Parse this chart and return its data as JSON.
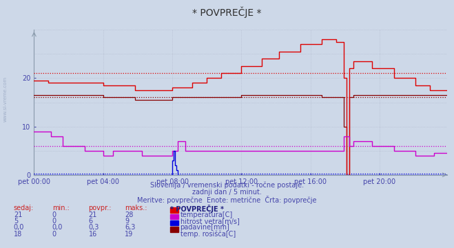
{
  "title": "* POVPREČJE *",
  "bg_color": "#cdd8e8",
  "plot_bg_color": "#cdd8e8",
  "xlabel_color": "#4444aa",
  "text_color": "#4444aa",
  "subtitle1": "Slovenija / vremenski podatki - ročne postaje.",
  "subtitle2": "zadnji dan / 5 minut.",
  "subtitle3": "Meritve: povprečne  Enote: metrične  Črta: povprečje",
  "x_labels": [
    "pet 00:00",
    "pet 04:00",
    "pet 08:00",
    "pet 12:00",
    "pet 16:00",
    "pet 20:00"
  ],
  "x_ticks": [
    0,
    48,
    96,
    144,
    192,
    240
  ],
  "ylim": [
    0,
    30
  ],
  "yticks": [
    0,
    10,
    20
  ],
  "n_points": 288,
  "temperatura_color": "#dd0000",
  "hitrost_color": "#cc00cc",
  "padavine_color": "#0000dd",
  "rosisce_color": "#880000",
  "avg_temperatura": 21,
  "avg_hitrost": 6,
  "avg_padavine": 0.3,
  "avg_rosisce": 16,
  "table_headers": [
    "sedaj:",
    "min.:",
    "povpr.:",
    "maks.:",
    "* POVPREČJE *"
  ],
  "table_rows": [
    [
      "21",
      "0",
      "21",
      "28",
      "temperatura[C]",
      "#dd0000"
    ],
    [
      "5",
      "0",
      "6",
      "9",
      "hitrost vetra[m/s]",
      "#cc00cc"
    ],
    [
      "0,0",
      "0,0",
      "0,3",
      "6,3",
      "padavine[mm]",
      "#0000dd"
    ],
    [
      "18",
      "0",
      "16",
      "19",
      "temp. rosišča[C]",
      "#880000"
    ]
  ]
}
